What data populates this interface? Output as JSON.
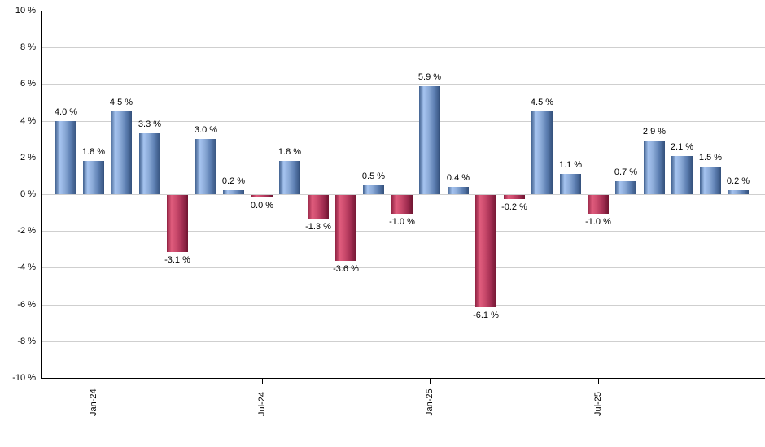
{
  "chart_data": {
    "type": "bar",
    "title": "",
    "xlabel": "",
    "ylabel": "",
    "unit": "%",
    "ylim": [
      -10,
      10
    ],
    "grid": true,
    "legend_position": "none",
    "y_ticks": [
      {
        "value": 10,
        "label": "10 %"
      },
      {
        "value": 8,
        "label": "8 %"
      },
      {
        "value": 6,
        "label": "6 %"
      },
      {
        "value": 4,
        "label": "4 %"
      },
      {
        "value": 2,
        "label": "2 %"
      },
      {
        "value": 0,
        "label": "0 %"
      },
      {
        "value": -2,
        "label": "-2 %"
      },
      {
        "value": -4,
        "label": "-4 %"
      },
      {
        "value": -6,
        "label": "-6 %"
      },
      {
        "value": -8,
        "label": "-8 %"
      },
      {
        "value": -10,
        "label": "-10 %"
      }
    ],
    "x_ticks": [
      {
        "label": "Jan-24",
        "index": 1
      },
      {
        "label": "Jul-24",
        "index": 7
      },
      {
        "label": "Jan-25",
        "index": 13
      },
      {
        "label": "Jul-25",
        "index": 19
      }
    ],
    "points": [
      {
        "month": "Dec-23",
        "value": 4.0,
        "label": "4.0 %",
        "color": "blue"
      },
      {
        "month": "Jan-24",
        "value": 1.8,
        "label": "1.8 %",
        "color": "blue"
      },
      {
        "month": "Feb-24",
        "value": 4.5,
        "label": "4.5 %",
        "color": "blue"
      },
      {
        "month": "Mar-24",
        "value": 3.3,
        "label": "3.3 %",
        "color": "blue"
      },
      {
        "month": "Apr-24",
        "value": -3.1,
        "label": "-3.1 %",
        "color": "red"
      },
      {
        "month": "May-24",
        "value": 3.0,
        "label": "3.0 %",
        "color": "blue"
      },
      {
        "month": "Jun-24",
        "value": 0.2,
        "label": "0.2 %",
        "color": "blue"
      },
      {
        "month": "Jul-24",
        "value": 0.0,
        "label": "0.0 %",
        "color": "red"
      },
      {
        "month": "Aug-24",
        "value": 1.8,
        "label": "1.8 %",
        "color": "blue"
      },
      {
        "month": "Sep-24",
        "value": -1.3,
        "label": "-1.3 %",
        "color": "red"
      },
      {
        "month": "Oct-24",
        "value": -3.6,
        "label": "-3.6 %",
        "color": "red"
      },
      {
        "month": "Nov-24",
        "value": 0.5,
        "label": "0.5 %",
        "color": "blue"
      },
      {
        "month": "Dec-24",
        "value": -1.0,
        "label": "-1.0 %",
        "color": "red"
      },
      {
        "month": "Jan-25",
        "value": 5.9,
        "label": "5.9 %",
        "color": "blue"
      },
      {
        "month": "Feb-25",
        "value": 0.4,
        "label": "0.4 %",
        "color": "blue"
      },
      {
        "month": "Mar-25",
        "value": -6.1,
        "label": "-6.1 %",
        "color": "red"
      },
      {
        "month": "Apr-25",
        "value": -0.2,
        "label": "-0.2 %",
        "color": "red"
      },
      {
        "month": "May-25",
        "value": 4.5,
        "label": "4.5 %",
        "color": "blue"
      },
      {
        "month": "Jun-25",
        "value": 1.1,
        "label": "1.1 %",
        "color": "blue"
      },
      {
        "month": "Jul-25",
        "value": -1.0,
        "label": "-1.0 %",
        "color": "red"
      },
      {
        "month": "Aug-25",
        "value": 0.7,
        "label": "0.7 %",
        "color": "blue"
      },
      {
        "month": "Sep-25",
        "value": 2.9,
        "label": "2.9 %",
        "color": "blue"
      },
      {
        "month": "Oct-25",
        "value": 2.1,
        "label": "2.1 %",
        "color": "blue"
      },
      {
        "month": "Nov-25",
        "value": 1.5,
        "label": "1.5 %",
        "color": "blue"
      },
      {
        "month": "Dec-25",
        "value": 0.2,
        "label": "0.2 %",
        "color": "blue"
      }
    ]
  },
  "colors": {
    "positive_bar_highlight": "#a6c4f0",
    "positive_bar_dark": "#33507b",
    "negative_bar_highlight": "#e05c7d",
    "negative_bar_dark": "#6f1531",
    "grid": "#cfcfcf",
    "axis": "#000000",
    "text": "#000000"
  }
}
